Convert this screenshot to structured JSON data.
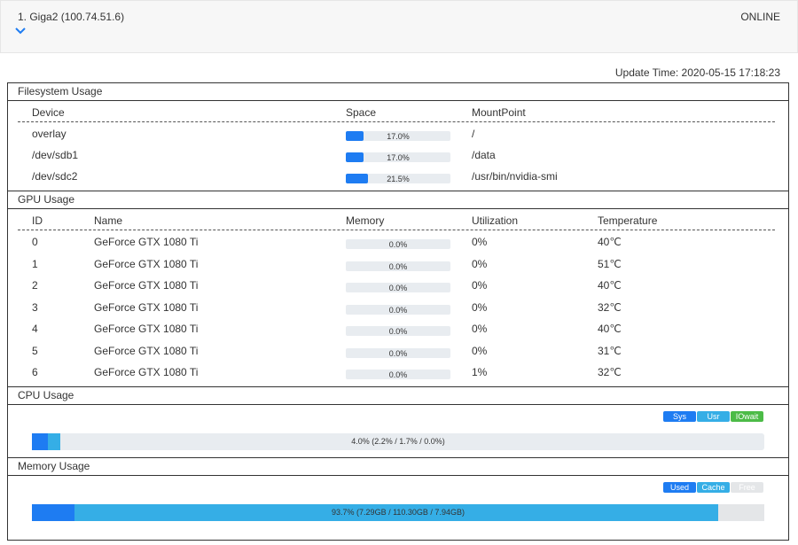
{
  "header": {
    "title": "1. Giga2 (100.74.51.6)",
    "status": "ONLINE"
  },
  "update_time": "Update Time: 2020-05-15 17:18:23",
  "filesystem": {
    "title": "Filesystem Usage",
    "columns": [
      "Device",
      "Space",
      "MountPoint"
    ],
    "rows": [
      {
        "device": "overlay",
        "space": {
          "value": 17.0,
          "label": "17.0%"
        },
        "mount": "/"
      },
      {
        "device": "/dev/sdb1",
        "space": {
          "value": 17.0,
          "label": "17.0%"
        },
        "mount": "/data"
      },
      {
        "device": "/dev/sdc2",
        "space": {
          "value": 21.5,
          "label": "21.5%"
        },
        "mount": "/usr/bin/nvidia-smi"
      }
    ]
  },
  "gpu": {
    "title": "GPU Usage",
    "columns": [
      "ID",
      "Name",
      "Memory",
      "Utilization",
      "Temperature"
    ],
    "rows": [
      {
        "id": "0",
        "name": "GeForce GTX 1080 Ti",
        "memory": {
          "value": 0.0,
          "label": "0.0%"
        },
        "utilization": "0%",
        "temperature": "40℃"
      },
      {
        "id": "1",
        "name": "GeForce GTX 1080 Ti",
        "memory": {
          "value": 0.0,
          "label": "0.0%"
        },
        "utilization": "0%",
        "temperature": "51℃"
      },
      {
        "id": "2",
        "name": "GeForce GTX 1080 Ti",
        "memory": {
          "value": 0.0,
          "label": "0.0%"
        },
        "utilization": "0%",
        "temperature": "40℃"
      },
      {
        "id": "3",
        "name": "GeForce GTX 1080 Ti",
        "memory": {
          "value": 0.0,
          "label": "0.0%"
        },
        "utilization": "0%",
        "temperature": "32℃"
      },
      {
        "id": "4",
        "name": "GeForce GTX 1080 Ti",
        "memory": {
          "value": 0.0,
          "label": "0.0%"
        },
        "utilization": "0%",
        "temperature": "40℃"
      },
      {
        "id": "5",
        "name": "GeForce GTX 1080 Ti",
        "memory": {
          "value": 0.0,
          "label": "0.0%"
        },
        "utilization": "0%",
        "temperature": "31℃"
      },
      {
        "id": "6",
        "name": "GeForce GTX 1080 Ti",
        "memory": {
          "value": 0.0,
          "label": "0.0%"
        },
        "utilization": "1%",
        "temperature": "32℃"
      }
    ]
  },
  "cpu": {
    "title": "CPU Usage",
    "label": "4.0% (2.2% / 1.7% / 0.0%)",
    "segments": [
      {
        "name": "Sys",
        "color": "#1e7cf2",
        "value": 2.2
      },
      {
        "name": "Usr",
        "color": "#35aee6",
        "value": 1.7
      },
      {
        "name": "IOwait",
        "color": "#4cbb47",
        "value": 0.0
      }
    ]
  },
  "memory": {
    "title": "Memory Usage",
    "label": "93.7% (7.29GB / 110.30GB / 7.94GB)",
    "segments": [
      {
        "name": "Used",
        "color": "#1e7cf2",
        "value": 7.29
      },
      {
        "name": "Cache",
        "color": "#35aee6",
        "value": 110.3
      },
      {
        "name": "Free",
        "color": "#e4e6e8",
        "value": 7.94
      }
    ]
  }
}
